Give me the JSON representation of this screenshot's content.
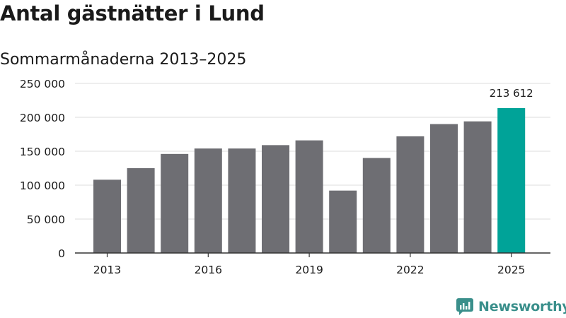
{
  "title": "Antal gästnätter i Lund",
  "subtitle": "Sommarmånaderna 2013–2025",
  "brand": {
    "name": "Newsworthy",
    "icon": "newsworthy-logo-icon",
    "color": "#3a8f8b"
  },
  "colors": {
    "bar": "#6e6e73",
    "highlight": "#00a398",
    "grid": "#dddddd",
    "axis": "#333333",
    "text": "#1a1a1a"
  },
  "chart_data": {
    "type": "bar",
    "categories": [
      "2013",
      "2014",
      "2015",
      "2016",
      "2017",
      "2018",
      "2019",
      "2020",
      "2021",
      "2022",
      "2023",
      "2024",
      "2025"
    ],
    "values": [
      108000,
      125000,
      146000,
      154000,
      154000,
      159000,
      166000,
      92000,
      140000,
      172000,
      190000,
      194000,
      213612
    ],
    "highlight_index": 12,
    "data_labels": [
      {
        "index": 12,
        "text": "213 612"
      }
    ],
    "x_tick_labels": [
      "2013",
      "2016",
      "2019",
      "2022",
      "2025"
    ],
    "y_tick_values": [
      0,
      50000,
      100000,
      150000,
      200000,
      250000
    ],
    "y_tick_labels": [
      "0",
      "50 000",
      "100 000",
      "150 000",
      "200 000",
      "250 000"
    ],
    "ylim": [
      0,
      250000
    ],
    "xlabel": "",
    "ylabel": "",
    "grid": true,
    "legend": "none"
  }
}
